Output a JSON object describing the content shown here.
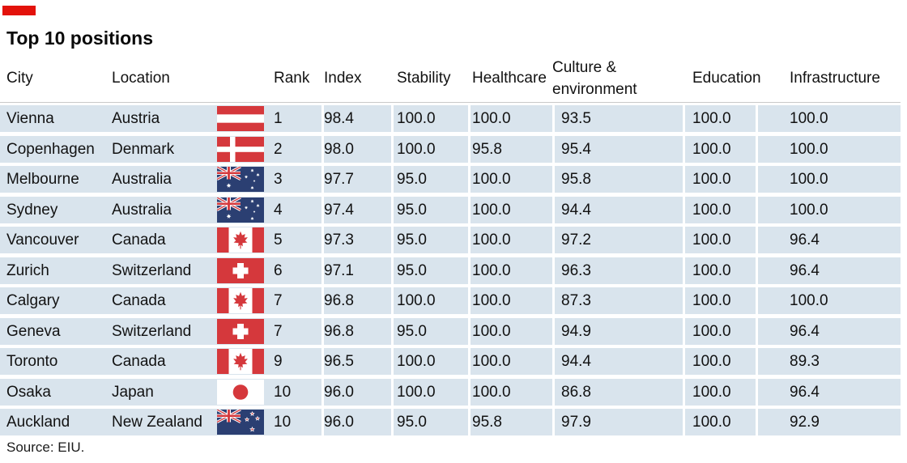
{
  "title": "Top 10 positions",
  "source": "Source: EIU.",
  "accent": {
    "brand_red": "#e3120b",
    "row_background": "#d9e4ed",
    "flag_red": "#d5383c",
    "flag_navy": "#2b3f72"
  },
  "columns": {
    "city": "City",
    "location": "Location",
    "flag": "",
    "rank": "Rank",
    "index": "Index",
    "stability": "Stability",
    "healthcare": "Healthcare",
    "culture": "Culture & environment",
    "education": "Education",
    "infrastructure": "Infrastructure"
  },
  "rows": [
    {
      "city": "Vienna",
      "location": "Austria",
      "flag": "at",
      "rank": "1",
      "index": "98.4",
      "stability": "100.0",
      "healthcare": "100.0",
      "culture": "93.5",
      "education": "100.0",
      "infrastructure": "100.0"
    },
    {
      "city": "Copenhagen",
      "location": "Denmark",
      "flag": "dk",
      "rank": "2",
      "index": "98.0",
      "stability": "100.0",
      "healthcare": "95.8",
      "culture": "95.4",
      "education": "100.0",
      "infrastructure": "100.0"
    },
    {
      "city": "Melbourne",
      "location": "Australia",
      "flag": "au",
      "rank": "3",
      "index": "97.7",
      "stability": "95.0",
      "healthcare": "100.0",
      "culture": "95.8",
      "education": "100.0",
      "infrastructure": "100.0"
    },
    {
      "city": "Sydney",
      "location": "Australia",
      "flag": "au",
      "rank": "4",
      "index": "97.4",
      "stability": "95.0",
      "healthcare": "100.0",
      "culture": "94.4",
      "education": "100.0",
      "infrastructure": "100.0"
    },
    {
      "city": "Vancouver",
      "location": "Canada",
      "flag": "ca",
      "rank": "5",
      "index": "97.3",
      "stability": "95.0",
      "healthcare": "100.0",
      "culture": "97.2",
      "education": "100.0",
      "infrastructure": "96.4"
    },
    {
      "city": "Zurich",
      "location": "Switzerland",
      "flag": "ch",
      "rank": "6",
      "index": "97.1",
      "stability": "95.0",
      "healthcare": "100.0",
      "culture": "96.3",
      "education": "100.0",
      "infrastructure": "96.4"
    },
    {
      "city": "Calgary",
      "location": "Canada",
      "flag": "ca",
      "rank": "7",
      "index": "96.8",
      "stability": "100.0",
      "healthcare": "100.0",
      "culture": "87.3",
      "education": "100.0",
      "infrastructure": "100.0"
    },
    {
      "city": "Geneva",
      "location": "Switzerland",
      "flag": "ch",
      "rank": "7",
      "index": "96.8",
      "stability": "95.0",
      "healthcare": "100.0",
      "culture": "94.9",
      "education": "100.0",
      "infrastructure": "96.4"
    },
    {
      "city": "Toronto",
      "location": "Canada",
      "flag": "ca",
      "rank": "9",
      "index": "96.5",
      "stability": "100.0",
      "healthcare": "100.0",
      "culture": "94.4",
      "education": "100.0",
      "infrastructure": "89.3"
    },
    {
      "city": "Osaka",
      "location": "Japan",
      "flag": "jp",
      "rank": "10",
      "index": "96.0",
      "stability": "100.0",
      "healthcare": "100.0",
      "culture": "86.8",
      "education": "100.0",
      "infrastructure": "96.4"
    },
    {
      "city": "Auckland",
      "location": "New Zealand",
      "flag": "nz",
      "rank": "10",
      "index": "96.0",
      "stability": "95.0",
      "healthcare": "95.8",
      "culture": "97.9",
      "education": "100.0",
      "infrastructure": "92.9"
    }
  ],
  "chart_data": {
    "type": "table",
    "title": "Top 10 positions",
    "source": "Source: EIU.",
    "columns": [
      "City",
      "Location",
      "Rank",
      "Index",
      "Stability",
      "Healthcare",
      "Culture & environment",
      "Education",
      "Infrastructure"
    ],
    "rows": [
      [
        "Vienna",
        "Austria",
        1,
        98.4,
        100.0,
        100.0,
        93.5,
        100.0,
        100.0
      ],
      [
        "Copenhagen",
        "Denmark",
        2,
        98.0,
        100.0,
        95.8,
        95.4,
        100.0,
        100.0
      ],
      [
        "Melbourne",
        "Australia",
        3,
        97.7,
        95.0,
        100.0,
        95.8,
        100.0,
        100.0
      ],
      [
        "Sydney",
        "Australia",
        4,
        97.4,
        95.0,
        100.0,
        94.4,
        100.0,
        100.0
      ],
      [
        "Vancouver",
        "Canada",
        5,
        97.3,
        95.0,
        100.0,
        97.2,
        100.0,
        96.4
      ],
      [
        "Zurich",
        "Switzerland",
        6,
        97.1,
        95.0,
        100.0,
        96.3,
        100.0,
        96.4
      ],
      [
        "Calgary",
        "Canada",
        7,
        96.8,
        100.0,
        100.0,
        87.3,
        100.0,
        100.0
      ],
      [
        "Geneva",
        "Switzerland",
        7,
        96.8,
        95.0,
        100.0,
        94.9,
        100.0,
        96.4
      ],
      [
        "Toronto",
        "Canada",
        9,
        96.5,
        100.0,
        100.0,
        94.4,
        100.0,
        89.3
      ],
      [
        "Osaka",
        "Japan",
        10,
        96.0,
        100.0,
        100.0,
        86.8,
        100.0,
        96.4
      ],
      [
        "Auckland",
        "New Zealand",
        10,
        96.0,
        95.0,
        95.8,
        97.9,
        100.0,
        92.9
      ]
    ]
  }
}
